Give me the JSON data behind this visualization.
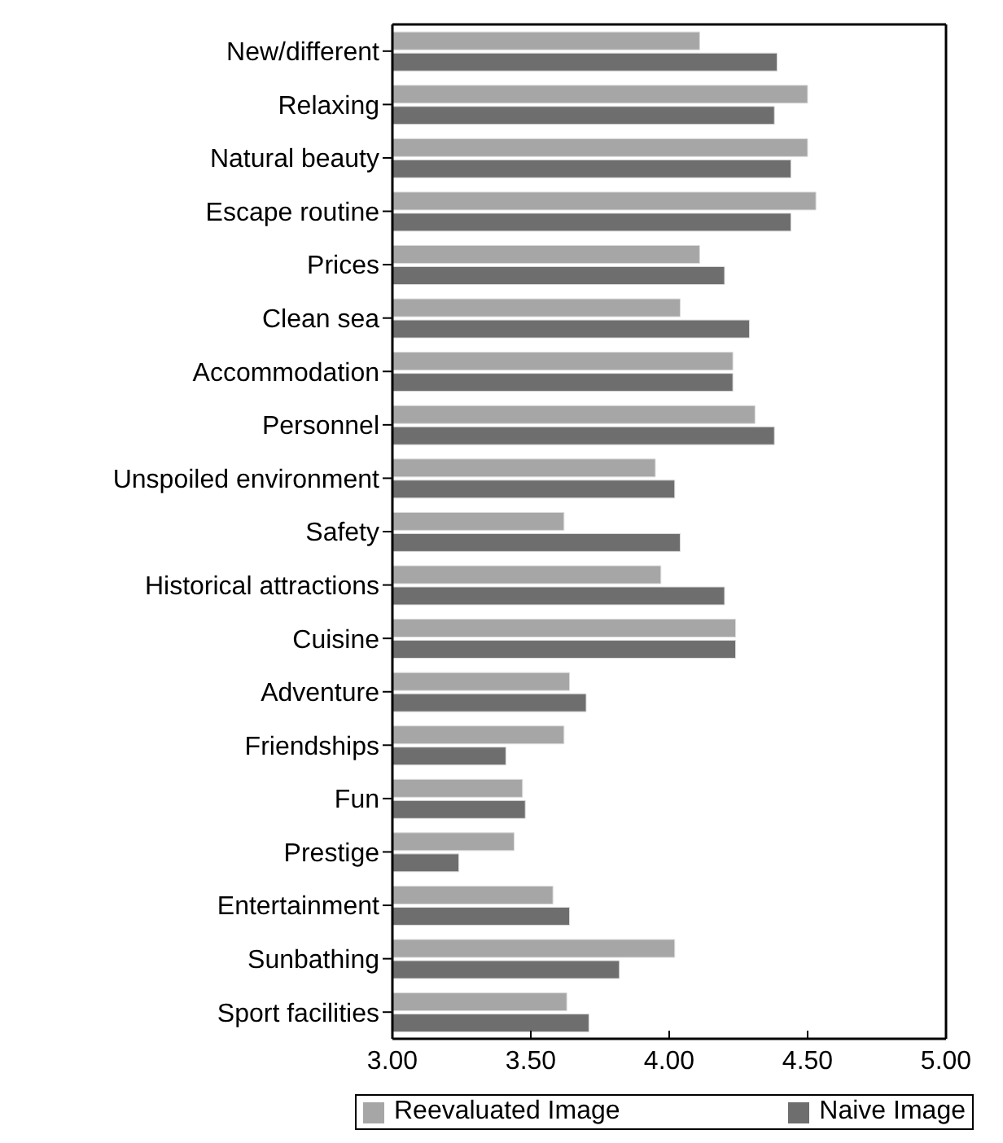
{
  "chart_data": {
    "type": "bar",
    "orientation": "horizontal",
    "categories": [
      "New/different",
      "Relaxing",
      "Natural beauty",
      "Escape routine",
      "Prices",
      "Clean sea",
      "Accommodation",
      "Personnel",
      "Unspoiled environment",
      "Safety",
      "Historical attractions",
      "Cuisine",
      "Adventure",
      "Friendships",
      "Fun",
      "Prestige",
      "Entertainment",
      "Sunbathing",
      "Sport facilities"
    ],
    "series": [
      {
        "name": "Reevaluated Image",
        "color": "#a6a6a6",
        "values": [
          4.11,
          4.5,
          4.5,
          4.53,
          4.11,
          4.04,
          4.23,
          4.31,
          3.95,
          3.62,
          3.97,
          4.24,
          3.64,
          3.62,
          3.47,
          3.44,
          3.58,
          4.02,
          3.63
        ]
      },
      {
        "name": "Naive Image",
        "color": "#6e6e6e",
        "values": [
          4.39,
          4.38,
          4.44,
          4.44,
          4.2,
          4.29,
          4.23,
          4.38,
          4.02,
          4.04,
          4.2,
          4.24,
          3.7,
          3.41,
          3.48,
          3.24,
          3.64,
          3.82,
          3.71
        ]
      }
    ],
    "xlim": [
      3.0,
      5.0
    ],
    "xticks": [
      {
        "value": 3.0,
        "label": "3.00"
      },
      {
        "value": 3.5,
        "label": "3.50"
      },
      {
        "value": 4.0,
        "label": "4.00"
      },
      {
        "value": 4.5,
        "label": "4.50"
      },
      {
        "value": 5.0,
        "label": "5.00"
      }
    ],
    "grid": false,
    "legend": "bottom"
  }
}
